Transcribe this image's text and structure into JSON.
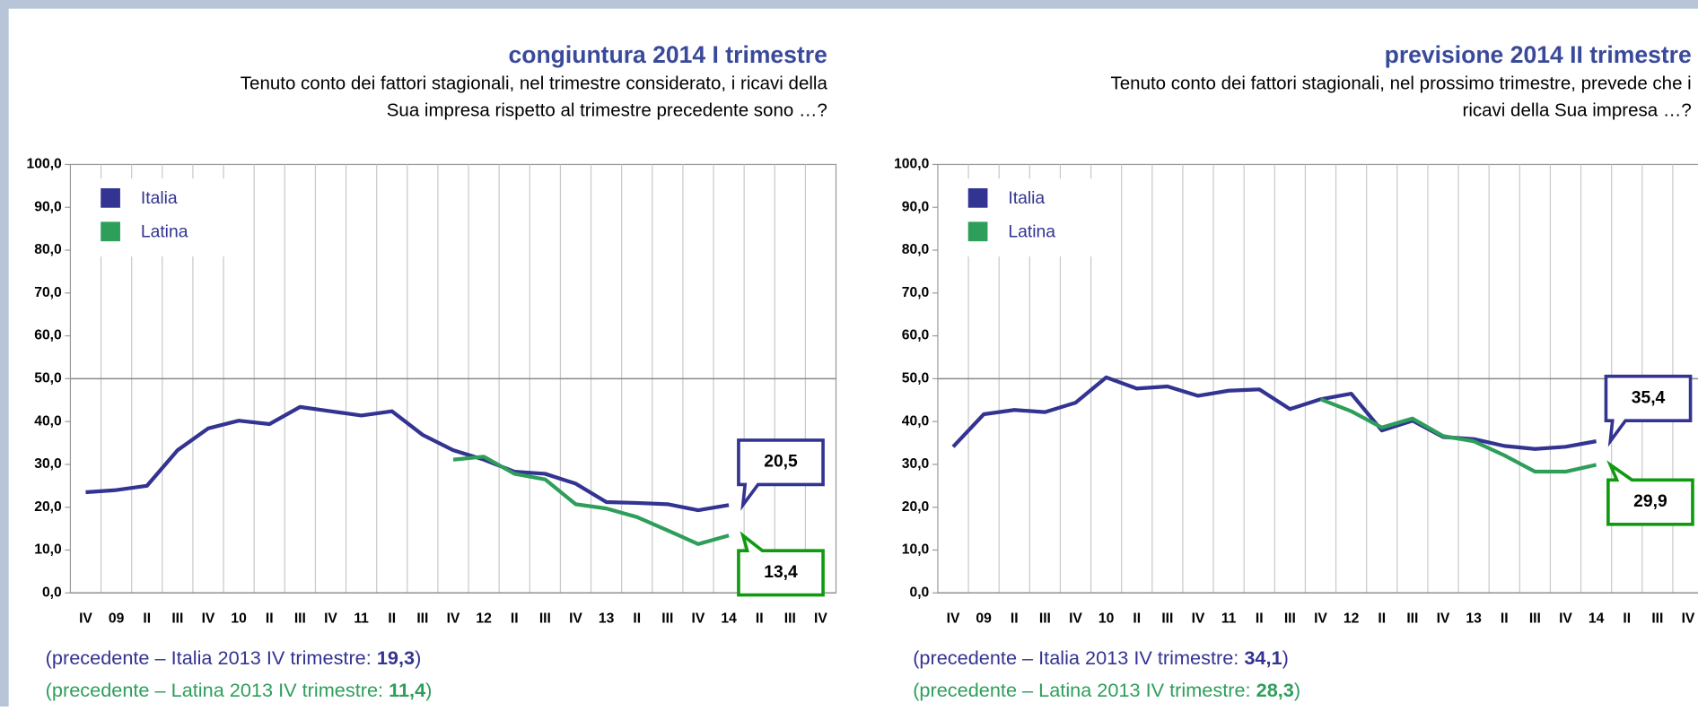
{
  "chart_data": [
    {
      "type": "line",
      "title": "congiuntura 2014 I trimestre",
      "subtitle": [
        "Tenuto conto dei fattori stagionali, nel trimestre considerato, i ricavi della",
        "Sua impresa rispetto al trimestre precedente sono …?"
      ],
      "categories": [
        "IV",
        "09",
        "II",
        "III",
        "IV",
        "10",
        "II",
        "III",
        "IV",
        "11",
        "II",
        "III",
        "IV",
        "12",
        "II",
        "III",
        "IV",
        "13",
        "II",
        "III",
        "IV",
        "14",
        "II",
        "III",
        "IV"
      ],
      "series": [
        {
          "name": "Italia",
          "color": "#333391",
          "values": [
            23.5,
            24.0,
            25.0,
            33.3,
            38.4,
            40.2,
            39.4,
            43.4,
            42.4,
            41.4,
            42.4,
            36.9,
            33.3,
            31.1,
            28.3,
            27.8,
            25.5,
            21.2,
            21.0,
            20.7,
            19.3,
            20.5,
            null,
            null,
            null
          ],
          "value_labels": [
            null,
            null,
            null,
            null,
            null,
            null,
            null,
            null,
            null,
            null,
            null,
            null,
            null,
            null,
            null,
            null,
            null,
            null,
            null,
            null,
            null,
            "20,5",
            null,
            null,
            null
          ]
        },
        {
          "name": "Latina",
          "color": "#2e9e5b",
          "values": [
            null,
            null,
            null,
            null,
            null,
            null,
            null,
            null,
            null,
            null,
            null,
            null,
            31.1,
            31.8,
            27.8,
            26.5,
            20.7,
            19.7,
            17.7,
            14.6,
            11.4,
            13.4,
            null,
            null,
            null
          ],
          "value_labels": [
            null,
            null,
            null,
            null,
            null,
            null,
            null,
            null,
            null,
            null,
            null,
            null,
            null,
            null,
            null,
            null,
            null,
            null,
            null,
            null,
            null,
            "13,4",
            null,
            null,
            null
          ]
        }
      ],
      "ylim": [
        0,
        100
      ],
      "yticks": [
        {
          "value": 0,
          "label": "0,0"
        },
        {
          "value": 10,
          "label": "10,0"
        },
        {
          "value": 20,
          "label": "20,0"
        },
        {
          "value": 30,
          "label": "30,0"
        },
        {
          "value": 40,
          "label": "40,0"
        },
        {
          "value": 50,
          "label": "50,0"
        },
        {
          "value": 60,
          "label": "60,0"
        },
        {
          "value": 70,
          "label": "70,0"
        },
        {
          "value": 80,
          "label": "80,0"
        },
        {
          "value": 90,
          "label": "90,0"
        },
        {
          "value": 100,
          "label": "100,0"
        }
      ],
      "hline": 50,
      "legend": "upper left",
      "notes": [
        {
          "text": "(precedente – Italia 2013 IV trimestre: ",
          "value": 19.3,
          "value_label": "19,3",
          "end": ")"
        },
        {
          "text": "(precedente – Latina 2013 IV trimestre: ",
          "value": 11.4,
          "value_label": "11,4",
          "end": ")"
        }
      ]
    },
    {
      "type": "line",
      "title": "previsione 2014 II trimestre",
      "subtitle": [
        "Tenuto conto dei fattori stagionali, nel prossimo trimestre, prevede che i",
        "ricavi della Sua impresa …?"
      ],
      "categories": [
        "IV",
        "09",
        "II",
        "III",
        "IV",
        "10",
        "II",
        "III",
        "IV",
        "11",
        "II",
        "III",
        "IV",
        "12",
        "II",
        "III",
        "IV",
        "13",
        "II",
        "III",
        "IV",
        "14",
        "II",
        "III",
        "IV"
      ],
      "series": [
        {
          "name": "Italia",
          "color": "#333391",
          "values": [
            34.1,
            41.7,
            42.7,
            42.2,
            44.4,
            50.3,
            47.7,
            48.2,
            46.0,
            47.2,
            47.5,
            42.9,
            45.2,
            46.5,
            37.9,
            40.2,
            36.4,
            35.9,
            34.3,
            33.6,
            34.1,
            35.4,
            null,
            null,
            null
          ],
          "value_labels": [
            null,
            null,
            null,
            null,
            null,
            null,
            null,
            null,
            null,
            null,
            null,
            null,
            null,
            null,
            null,
            null,
            null,
            null,
            null,
            null,
            null,
            "35,4",
            null,
            null,
            null
          ]
        },
        {
          "name": "Latina",
          "color": "#2e9e5b",
          "values": [
            null,
            null,
            null,
            null,
            null,
            null,
            null,
            null,
            null,
            null,
            null,
            null,
            45.2,
            42.4,
            38.6,
            40.7,
            36.6,
            35.4,
            32.1,
            28.3,
            28.3,
            29.9,
            null,
            null,
            null
          ],
          "value_labels": [
            null,
            null,
            null,
            null,
            null,
            null,
            null,
            null,
            null,
            null,
            null,
            null,
            null,
            null,
            null,
            null,
            null,
            null,
            null,
            null,
            null,
            "29,9",
            null,
            null,
            null
          ]
        }
      ],
      "ylim": [
        0,
        100
      ],
      "yticks": [
        {
          "value": 0,
          "label": "0,0"
        },
        {
          "value": 10,
          "label": "10,0"
        },
        {
          "value": 20,
          "label": "20,0"
        },
        {
          "value": 30,
          "label": "30,0"
        },
        {
          "value": 40,
          "label": "40,0"
        },
        {
          "value": 50,
          "label": "50,0"
        },
        {
          "value": 60,
          "label": "60,0"
        },
        {
          "value": 70,
          "label": "70,0"
        },
        {
          "value": 80,
          "label": "80,0"
        },
        {
          "value": 90,
          "label": "90,0"
        },
        {
          "value": 100,
          "label": "100,0"
        }
      ],
      "hline": 50,
      "legend": "upper left",
      "notes": [
        {
          "text": "(precedente – Italia 2013 IV trimestre: ",
          "value": 34.1,
          "value_label": "34,1",
          "end": ")"
        },
        {
          "text": "(precedente – Latina 2013 IV trimestre: ",
          "value": 28.3,
          "value_label": "28,3",
          "end": ")"
        }
      ]
    }
  ]
}
